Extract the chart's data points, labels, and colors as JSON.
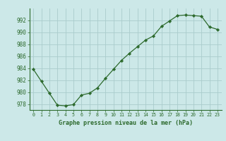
{
  "x": [
    0,
    1,
    2,
    3,
    4,
    5,
    6,
    7,
    8,
    9,
    10,
    11,
    12,
    13,
    14,
    15,
    16,
    17,
    18,
    19,
    20,
    21,
    22,
    23
  ],
  "y": [
    983.8,
    981.8,
    979.8,
    977.8,
    977.7,
    977.9,
    979.5,
    979.8,
    980.7,
    982.3,
    983.8,
    985.3,
    986.5,
    987.6,
    988.7,
    989.4,
    991.0,
    991.9,
    992.8,
    992.9,
    992.8,
    992.7,
    990.9,
    990.5
  ],
  "line_color": "#2d6a2d",
  "marker": "D",
  "marker_size": 2.2,
  "bg_color": "#cce8e8",
  "grid_color": "#aacccc",
  "ylabel_ticks": [
    978,
    980,
    982,
    984,
    986,
    988,
    990,
    992
  ],
  "xlabel_label": "Graphe pression niveau de la mer (hPa)",
  "ylim": [
    977.0,
    994.0
  ],
  "xlim_min": -0.5,
  "xlim_max": 23.5
}
